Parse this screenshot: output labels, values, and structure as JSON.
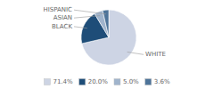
{
  "chart_data": {
    "type": "pie",
    "categories": [
      "WHITE",
      "BLACK",
      "ASIAN",
      "HISPANIC"
    ],
    "values": [
      71.4,
      20.0,
      5.0,
      3.6
    ],
    "value_labels": [
      "71.4%",
      "20.0%",
      "5.0%",
      "3.6%"
    ],
    "colors": [
      "#cdd4e4",
      "#1e4d78",
      "#a0b4cc",
      "#4e7499"
    ],
    "legend": "bottom"
  }
}
